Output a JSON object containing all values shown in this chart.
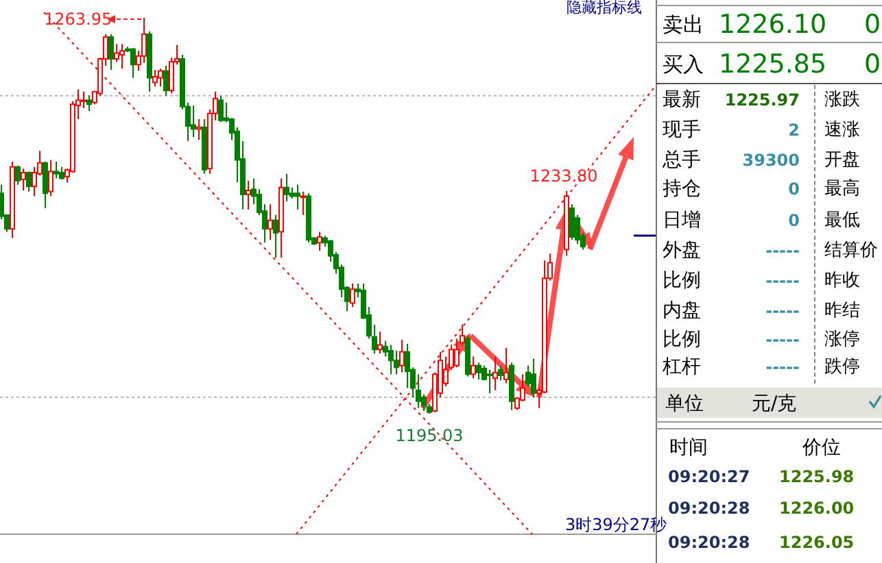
{
  "chart_data": [
    {
      "type": "candlestick",
      "categories": [
        null,
        null,
        null,
        null,
        null,
        null,
        null,
        null,
        null,
        null,
        null,
        null,
        null,
        null,
        null,
        null,
        null,
        null,
        null,
        null,
        null,
        null,
        null,
        null,
        null,
        null,
        null,
        null,
        null,
        null,
        null,
        null,
        null,
        null,
        null,
        null,
        null,
        null,
        null,
        null,
        null,
        null,
        null,
        null,
        null,
        null,
        null,
        null,
        null,
        null,
        null,
        null,
        null,
        null,
        null,
        null,
        null,
        null,
        null,
        null,
        null,
        null,
        null,
        null,
        null,
        null,
        null,
        null,
        null,
        null,
        null,
        null,
        null,
        null,
        null,
        null,
        null,
        null,
        null,
        null,
        null,
        null,
        null,
        null,
        null,
        null,
        null,
        null,
        null,
        null,
        null,
        null,
        null,
        null,
        null,
        null,
        null,
        null,
        null,
        null,
        null,
        null,
        null,
        null,
        null,
        null,
        null
      ],
      "ohlc": [
        [
          1233.4,
          1234.9,
          1228.9,
          1229.4
        ],
        [
          1229.6,
          1229.6,
          1226.7,
          1227.2
        ],
        [
          1227.2,
          1238.9,
          1225.6,
          1238.0
        ],
        [
          1238.0,
          1238.2,
          1234.9,
          1235.6
        ],
        [
          1235.8,
          1237.7,
          1233.9,
          1237.0
        ],
        [
          1237.0,
          1237.2,
          1233.7,
          1234.6
        ],
        [
          1234.6,
          1238.0,
          1232.9,
          1237.0
        ],
        [
          1236.8,
          1240.8,
          1236.5,
          1238.7
        ],
        [
          1238.7,
          1238.9,
          1230.8,
          1233.4
        ],
        [
          1233.7,
          1239.2,
          1232.9,
          1237.2
        ],
        [
          1237.2,
          1238.9,
          1236.0,
          1236.8
        ],
        [
          1237.0,
          1238.0,
          1235.8,
          1236.0
        ],
        [
          1236.3,
          1237.7,
          1235.3,
          1237.5
        ],
        [
          1237.2,
          1249.4,
          1237.0,
          1248.9
        ],
        [
          1248.7,
          1251.5,
          1246.3,
          1249.6
        ],
        [
          1249.4,
          1251.1,
          1248.2,
          1249.6
        ],
        [
          1249.6,
          1250.4,
          1247.7,
          1248.9
        ],
        [
          1249.2,
          1251.1,
          1248.9,
          1251.1
        ],
        [
          1250.8,
          1257.0,
          1250.4,
          1256.8
        ],
        [
          1256.8,
          1261.1,
          1255.6,
          1260.6
        ],
        [
          1260.6,
          1261.1,
          1254.9,
          1256.8
        ],
        [
          1256.8,
          1259.4,
          1256.3,
          1257.8
        ],
        [
          1257.5,
          1259.4,
          1255.1,
          1258.2
        ],
        [
          1258.5,
          1258.9,
          1258.0,
          1258.2
        ],
        [
          1258.5,
          1258.7,
          1253.5,
          1255.8
        ],
        [
          1255.8,
          1258.2,
          1254.7,
          1257.3
        ],
        [
          1257.3,
          1263.95,
          1256.1,
          1261.1
        ],
        [
          1261.1,
          1261.6,
          1251.1,
          1253.5
        ],
        [
          1252.7,
          1254.9,
          1252.0,
          1253.7
        ],
        [
          1253.5,
          1255.1,
          1252.0,
          1254.7
        ],
        [
          1254.7,
          1255.6,
          1250.4,
          1251.3
        ],
        [
          1251.3,
          1257.0,
          1250.8,
          1256.3
        ],
        [
          1256.3,
          1259.2,
          1255.8,
          1256.8
        ],
        [
          1256.8,
          1257.5,
          1248.0,
          1248.5
        ],
        [
          1248.5,
          1249.2,
          1242.5,
          1245.1
        ],
        [
          1245.3,
          1248.7,
          1243.2,
          1244.6
        ],
        [
          1244.6,
          1246.3,
          1242.7,
          1244.9
        ],
        [
          1244.9,
          1246.3,
          1236.8,
          1237.5
        ],
        [
          1237.7,
          1248.0,
          1236.8,
          1247.3
        ],
        [
          1247.3,
          1251.1,
          1246.1,
          1249.9
        ],
        [
          1249.6,
          1250.4,
          1245.8,
          1246.1
        ],
        [
          1246.5,
          1249.2,
          1245.8,
          1246.1
        ],
        [
          1246.3,
          1246.5,
          1242.7,
          1243.9
        ],
        [
          1244.2,
          1244.9,
          1235.3,
          1239.2
        ],
        [
          1239.4,
          1242.5,
          1230.6,
          1233.2
        ],
        [
          1233.2,
          1235.6,
          1230.6,
          1233.9
        ],
        [
          1234.1,
          1236.0,
          1231.5,
          1232.9
        ],
        [
          1233.2,
          1234.1,
          1229.6,
          1230.1
        ],
        [
          1230.3,
          1231.5,
          1224.8,
          1227.2
        ],
        [
          1227.2,
          1231.5,
          1225.3,
          1228.7
        ],
        [
          1228.7,
          1229.6,
          1222.2,
          1226.5
        ],
        [
          1226.7,
          1236.0,
          1222.2,
          1234.4
        ],
        [
          1234.4,
          1236.8,
          1232.0,
          1233.2
        ],
        [
          1233.4,
          1234.4,
          1232.5,
          1232.9
        ],
        [
          1233.4,
          1234.9,
          1230.6,
          1232.9
        ],
        [
          1232.7,
          1233.7,
          1229.6,
          1232.9
        ],
        [
          1232.9,
          1233.4,
          1224.8,
          1225.3
        ],
        [
          1225.6,
          1225.8,
          1224.4,
          1224.6
        ],
        [
          1224.8,
          1226.7,
          1223.4,
          1225.8
        ],
        [
          1225.6,
          1226.0,
          1224.1,
          1224.8
        ],
        [
          1225.1,
          1225.3,
          1221.5,
          1222.5
        ],
        [
          1222.7,
          1223.2,
          1219.4,
          1220.3
        ],
        [
          1220.5,
          1221.0,
          1215.3,
          1216.7
        ],
        [
          1217.0,
          1217.2,
          1212.9,
          1214.6
        ],
        [
          1214.3,
          1217.7,
          1213.6,
          1216.7
        ],
        [
          1216.7,
          1217.7,
          1215.3,
          1216.3
        ],
        [
          1216.5,
          1217.7,
          1211.5,
          1211.7
        ],
        [
          1212.2,
          1213.6,
          1208.1,
          1208.6
        ],
        [
          1208.4,
          1210.5,
          1205.5,
          1206.2
        ],
        [
          1206.2,
          1209.3,
          1205.5,
          1207.0
        ],
        [
          1206.7,
          1207.7,
          1205.0,
          1205.8
        ],
        [
          1206.0,
          1207.0,
          1201.9,
          1204.3
        ],
        [
          1204.3,
          1206.0,
          1201.9,
          1203.1
        ],
        [
          1203.4,
          1207.9,
          1202.2,
          1205.8
        ],
        [
          1205.8,
          1207.2,
          1199.5,
          1202.4
        ],
        [
          1202.7,
          1203.1,
          1197.9,
          1199.5
        ],
        [
          1199.1,
          1201.9,
          1196.0,
          1197.2
        ],
        [
          1197.9,
          1198.4,
          1195.5,
          1196.5
        ],
        [
          1196.2,
          1196.7,
          1195.03,
          1195.3
        ],
        [
          1195.5,
          1202.2,
          1195.3,
          1201.9
        ],
        [
          1198.6,
          1205.8,
          1197.9,
          1204.3
        ],
        [
          1200.3,
          1205.0,
          1199.8,
          1202.7
        ],
        [
          1203.1,
          1207.0,
          1202.7,
          1206.2
        ],
        [
          1203.4,
          1208.1,
          1203.1,
          1206.2
        ],
        [
          1207.4,
          1210.5,
          1207.0,
          1208.6
        ],
        [
          1208.1,
          1208.6,
          1201.5,
          1201.9
        ],
        [
          1201.9,
          1205.0,
          1201.2,
          1203.4
        ],
        [
          1203.4,
          1203.9,
          1201.0,
          1202.2
        ],
        [
          1202.9,
          1203.4,
          1200.8,
          1201.0
        ],
        [
          1201.9,
          1202.7,
          1198.6,
          1201.7
        ],
        [
          1201.2,
          1205.0,
          1199.1,
          1202.2
        ],
        [
          1202.7,
          1203.4,
          1200.8,
          1201.7
        ],
        [
          1201.0,
          1206.5,
          1200.3,
          1202.2
        ],
        [
          1203.4,
          1203.9,
          1195.7,
          1197.2
        ],
        [
          1196.0,
          1197.7,
          1195.7,
          1197.7
        ],
        [
          1197.4,
          1201.9,
          1197.2,
          1199.5
        ],
        [
          1202.2,
          1203.4,
          1199.8,
          1200.3
        ],
        [
          1201.9,
          1204.6,
          1197.9,
          1198.6
        ],
        [
          1198.6,
          1199.5,
          1196.0,
          1199.1
        ],
        [
          1198.8,
          1221.7,
          1198.6,
          1218.6
        ],
        [
          1218.6,
          1222.9,
          1218.2,
          1221.3
        ],
        null,
        null,
        [
          1223.6,
          1233.8,
          1222.5,
          1232.9
        ],
        [
          1230.8,
          1231.5,
          1225.3,
          1225.8
        ],
        [
          1229.1,
          1229.6,
          1224.6,
          1225.3
        ],
        [
          1226.0,
          1226.5,
          1223.6,
          1224.1
        ]
      ],
      "colors": [
        "#008000",
        "#008000",
        "#ff0000",
        "#008000",
        "#ff0000",
        "#008000",
        "#ff0000",
        "#ff0000",
        "#008000",
        "#ff0000",
        "#008000",
        "#008000",
        "#ff0000",
        "#ff0000",
        "#ff0000",
        "#ff0000",
        "#008000",
        "#ff0000",
        "#ff0000",
        "#ff0000",
        "#008000",
        "#ff0000",
        "#ff0000",
        "#008000",
        "#008000",
        "#ff0000",
        "#ff0000",
        "#008000",
        "#ff0000",
        "#ff0000",
        "#008000",
        "#ff0000",
        "#ff0000",
        "#008000",
        "#008000",
        "#008000",
        "#ff0000",
        "#008000",
        "#ff0000",
        "#ff0000",
        "#008000",
        "#008000",
        "#008000",
        "#008000",
        "#008000",
        "#ff0000",
        "#008000",
        "#008000",
        "#008000",
        "#ff0000",
        "#008000",
        "#ff0000",
        "#008000",
        "#008000",
        "#008000",
        "#ff0000",
        "#008000",
        "#008000",
        "#ff0000",
        "#008000",
        "#008000",
        "#008000",
        "#008000",
        "#008000",
        "#ff0000",
        "#008000",
        "#008000",
        "#008000",
        "#008000",
        "#ff0000",
        "#008000",
        "#008000",
        "#008000",
        "#ff0000",
        "#008000",
        "#008000",
        "#008000",
        "#008000",
        "#008000",
        "#ff0000",
        "#ff0000",
        "#ff0000",
        "#ff0000",
        "#ff0000",
        "#ff0000",
        "#008000",
        "#ff0000",
        "#008000",
        "#008000",
        "#008000",
        "#ff0000",
        "#008000",
        "#ff0000",
        "#008000",
        "#ff0000",
        "#ff0000",
        "#008000",
        "#008000",
        "#ff0000",
        "#ff0000",
        "#ff0000",
        null,
        null,
        "#ff0000",
        "#008000",
        "#008000",
        "#008000"
      ],
      "ref_lines": [
        {
          "axis": "y",
          "value": 1250.4,
          "color": "#b4b4b4",
          "line_style": "dotted"
        },
        {
          "axis": "y",
          "value": 1197.9,
          "color": "#b4b4b4",
          "line_style": "dotted"
        }
      ],
      "annotations": [
        "1263.95",
        "1233.80",
        "1195.03",
        "隐藏指标线",
        "3时39分27秒"
      ]
    },
    {
      "type": "other",
      "annotations": [
        "卖出",
        "1226.10",
        "0",
        "买入",
        "1225.85",
        "0",
        "最新",
        "1225.97",
        "涨跌",
        "现手",
        "2",
        "速涨",
        "总手",
        "39300",
        "开盘",
        "持仓",
        "0",
        "最高",
        "日增",
        "0",
        "最低",
        "外盘",
        "-----",
        "结算价",
        "比例",
        "-----",
        "昨收",
        "内盘",
        "-----",
        "昨结",
        "比例",
        "-----",
        "涨停",
        "杠杆",
        "-----",
        "跌停",
        "单位",
        "元/克",
        "时间",
        "价位",
        "09:20:27",
        "1225.98",
        "09:20:28",
        "1226.00",
        "09:20:28",
        "1226.05"
      ]
    }
  ]
}
